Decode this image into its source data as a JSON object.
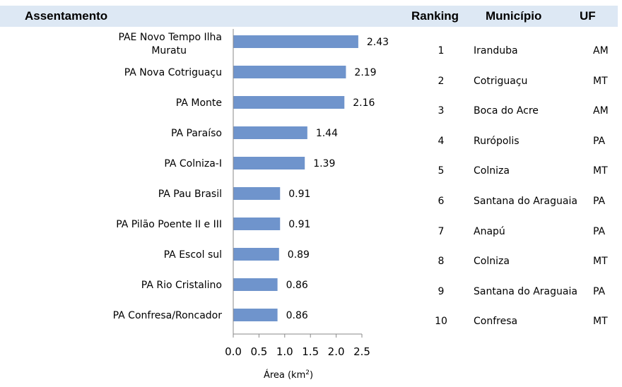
{
  "header": {
    "assentamento": "Assentamento",
    "ranking": "Ranking",
    "municipio": "Município",
    "uf": "UF"
  },
  "chart_data": {
    "type": "bar",
    "orientation": "horizontal",
    "categories": [
      "PAE Novo Tempo Ilha Muratu",
      "PA Nova Cotriguaçu",
      "PA Monte",
      "PA Paraíso",
      "PA Colniza-I",
      "PA Pau Brasil",
      "PA Pilão Poente II e III",
      "PA Escol sul",
      "PA Rio Cristalino",
      "PA Confresa/Roncador"
    ],
    "values": [
      2.43,
      2.19,
      2.16,
      1.44,
      1.39,
      0.91,
      0.91,
      0.89,
      0.86,
      0.86
    ],
    "value_labels": [
      "2.43",
      "2.19",
      "2.16",
      "1.44",
      "1.39",
      "0.91",
      "0.91",
      "0.89",
      "0.86",
      "0.86"
    ],
    "xticks": [
      "0.0",
      "0.5",
      "1.0",
      "1.5",
      "2.0",
      "2.5"
    ],
    "xlim": [
      0,
      2.5
    ],
    "xlabel": "Área (km",
    "xlabel_sup": "2",
    "xlabel_close": ")",
    "bar_color": "#6f94cc",
    "grid": false
  },
  "ranking_table": {
    "rows": [
      {
        "rank": "1",
        "municipio": "Iranduba",
        "uf": "AM"
      },
      {
        "rank": "2",
        "municipio": "Cotriguaçu",
        "uf": "MT"
      },
      {
        "rank": "3",
        "municipio": "Boca do Acre",
        "uf": "AM"
      },
      {
        "rank": "4",
        "municipio": "Rurópolis",
        "uf": "PA"
      },
      {
        "rank": "5",
        "municipio": "Colniza",
        "uf": "MT"
      },
      {
        "rank": "6",
        "municipio": "Santana do Araguaia",
        "uf": "PA"
      },
      {
        "rank": "7",
        "municipio": "Anapú",
        "uf": "PA"
      },
      {
        "rank": "8",
        "municipio": "Colniza",
        "uf": "MT"
      },
      {
        "rank": "9",
        "municipio": "Santana do Araguaia",
        "uf": "PA"
      },
      {
        "rank": "10",
        "municipio": "Confresa",
        "uf": "MT"
      }
    ]
  },
  "colors": {
    "header_band": "#dde8f4",
    "axis": "#888888"
  }
}
